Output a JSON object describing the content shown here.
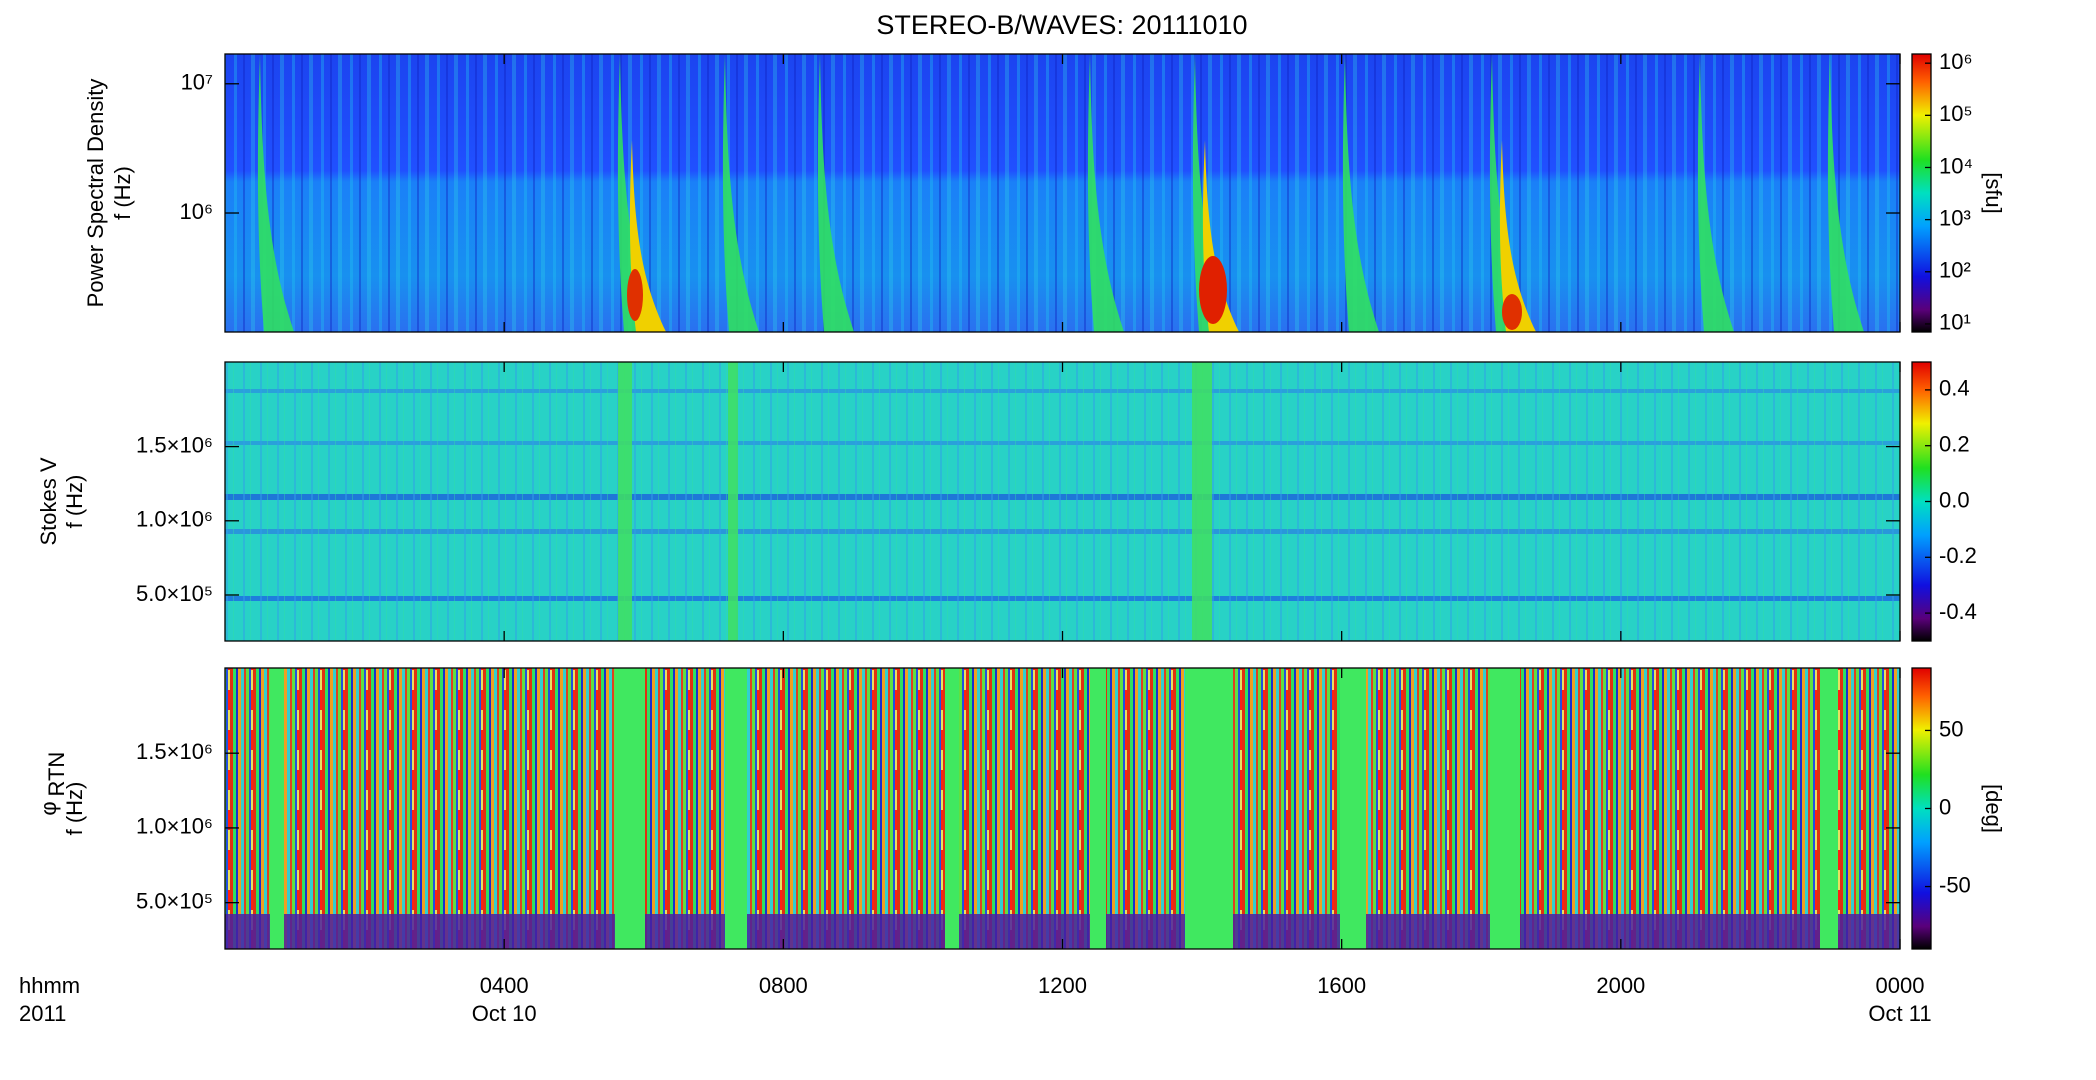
{
  "chart_data": [
    {
      "type": "spectrogram",
      "title": "STEREO-B/WAVES: 20111010",
      "ylabel": [
        "Power Spectral Density",
        "f (Hz)"
      ],
      "ylog": true,
      "ylim": [
        120000,
        17000000
      ],
      "yticks": [
        {
          "value": 1000000,
          "label": "10⁶"
        },
        {
          "value": 10000000,
          "label": "10⁷"
        }
      ],
      "clog": true,
      "clim": [
        7,
        1500000
      ],
      "cticks": [
        {
          "value": 10,
          "label": "10¹"
        },
        {
          "value": 100,
          "label": "10²"
        },
        {
          "value": 1000,
          "label": "10³"
        },
        {
          "value": 10000,
          "label": "10⁴"
        },
        {
          "value": 100000,
          "label": "10⁵"
        },
        {
          "value": 1000000,
          "label": "10⁶"
        }
      ],
      "clabel": "[sfu]"
    },
    {
      "type": "spectrogram",
      "ylabel": [
        "Stokes V",
        "f (Hz)"
      ],
      "ylog": false,
      "ylim": [
        190000,
        2070000
      ],
      "yticks": [
        {
          "value": 500000,
          "label": "5.0×10⁵"
        },
        {
          "value": 1000000,
          "label": "1.0×10⁶"
        },
        {
          "value": 1500000,
          "label": "1.5×10⁶"
        }
      ],
      "clog": false,
      "clim": [
        -0.5,
        0.5
      ],
      "cticks": [
        -0.4,
        -0.2,
        {
          "value": 0,
          "label": "0.0"
        },
        0.2,
        0.4
      ]
    },
    {
      "type": "spectrogram",
      "ylabel": [
        "φ",
        "f (Hz)"
      ],
      "ylabel_sub": "RTN",
      "ylog": false,
      "ylim": [
        190000,
        2070000
      ],
      "yticks": [
        {
          "value": 500000,
          "label": "5.0×10⁵"
        },
        {
          "value": 1000000,
          "label": "1.0×10⁶"
        },
        {
          "value": 1500000,
          "label": "1.5×10⁶"
        }
      ],
      "clog": false,
      "clim": [
        -90,
        90
      ],
      "cticks": [
        -50,
        0,
        50
      ],
      "clabel": "[deg]",
      "xlim": [
        0,
        24
      ],
      "xticks": [
        {
          "value": 4,
          "label": "0400"
        },
        {
          "value": 8,
          "label": "0800"
        },
        {
          "value": 12,
          "label": "1200"
        },
        {
          "value": 16,
          "label": "1600"
        },
        {
          "value": 20,
          "label": "2000"
        },
        {
          "value": 24,
          "label": "0000"
        }
      ],
      "xtick_dates": [
        {
          "value": 4,
          "label": "Oct 10"
        },
        {
          "value": 24,
          "label": "Oct 11"
        }
      ],
      "xlabel_lines": [
        "hhmm",
        "2011"
      ]
    }
  ]
}
